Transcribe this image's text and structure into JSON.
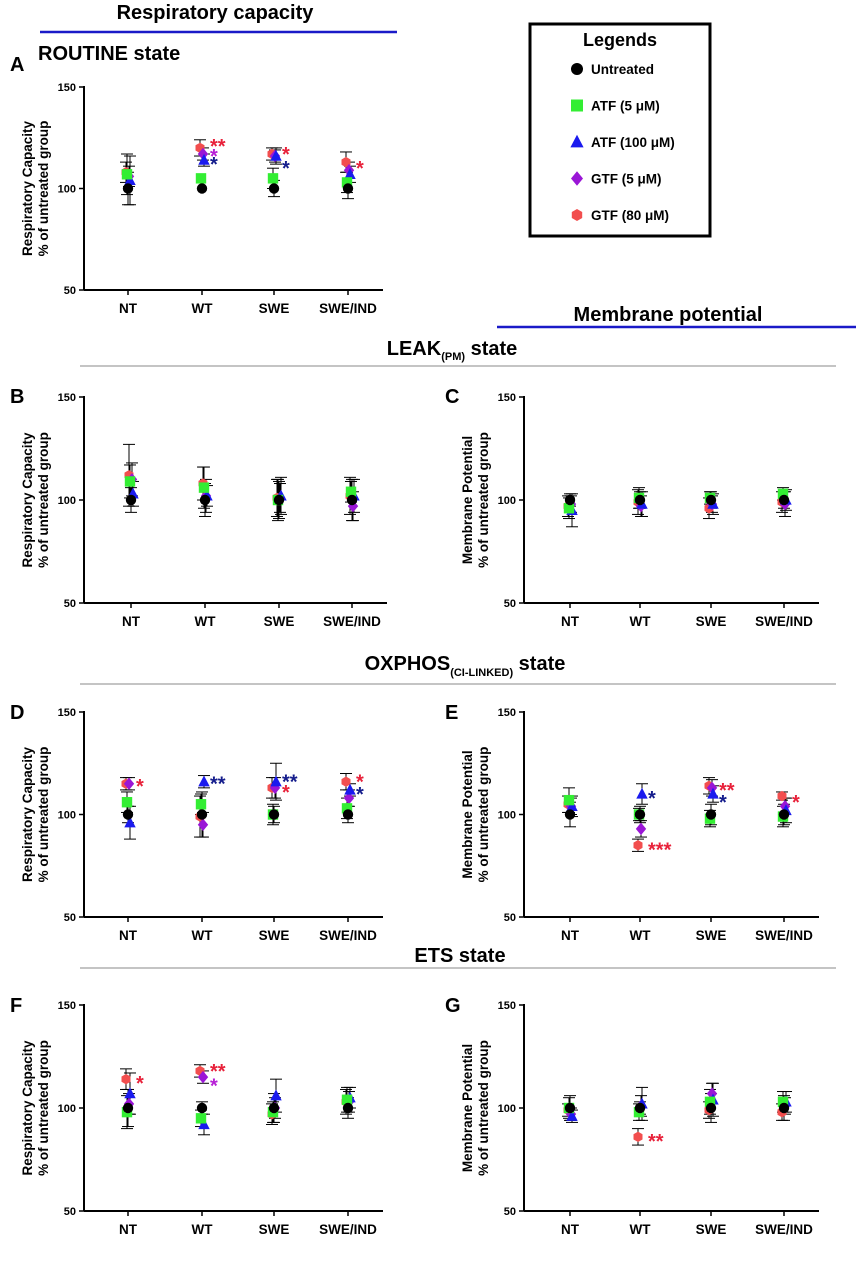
{
  "headers": {
    "resp_title": "Respiratory capacity",
    "routine_title": "ROUTINE state",
    "membrane_title": "Membrane potential",
    "leak_main": "LEAK",
    "leak_sub": "(PM)",
    "leak_tail": " state",
    "oxphos_main": "OXPHOS",
    "oxphos_sub": "(CI-LINKED)",
    "oxphos_tail": " state",
    "ets_title": "ETS state"
  },
  "legend": {
    "title": "Legends",
    "items": [
      {
        "label": "Untreated",
        "shape": "circle",
        "color": "#000000"
      },
      {
        "label": "ATF (5 μM)",
        "shape": "square",
        "color": "#33ee33"
      },
      {
        "label": "ATF (100 μM)",
        "shape": "triangle",
        "color": "#1a1aee"
      },
      {
        "label": "GTF (5 μM)",
        "shape": "diamond",
        "color": "#9a16d6"
      },
      {
        "label": "GTF (80 μM)",
        "shape": "hexagon",
        "color": "#f24e4e"
      }
    ]
  },
  "colors": {
    "header_line": "#1a1ac8",
    "divider": "#888888",
    "star_red": "#e8213a",
    "star_blue": "#141c8c",
    "star_purple": "#b61fd6"
  },
  "chart_data": [
    {
      "panel": "A",
      "type": "scatter",
      "ylabel_1": "Respiratory Capacity",
      "ylabel_2": "% of untreated group",
      "ylim": [
        50,
        150
      ],
      "yticks": [
        50,
        100,
        150
      ],
      "categories": [
        "NT",
        "WT",
        "SWE",
        "SWE/IND"
      ],
      "series": [
        {
          "name": "Untreated",
          "values": [
            100,
            100,
            100,
            100
          ],
          "errors": [
            8,
            0,
            4,
            5
          ]
        },
        {
          "name": "ATF (5 μM)",
          "values": [
            107,
            105,
            105,
            103
          ],
          "errors": [
            10,
            0,
            5,
            5
          ]
        },
        {
          "name": "ATF (100 μM)",
          "values": [
            104,
            114,
            116,
            107
          ],
          "errors": [
            12,
            3,
            4,
            4
          ]
        },
        {
          "name": "GTF (5 μM)",
          "values": [
            106,
            117,
            116,
            109
          ],
          "errors": [
            5,
            3,
            3,
            4
          ]
        },
        {
          "name": "GTF (80 μM)",
          "values": [
            108,
            120,
            117,
            113
          ],
          "errors": [
            5,
            4,
            3,
            5
          ]
        }
      ],
      "annotations": [
        {
          "category": "WT",
          "y": 122,
          "text": "**",
          "color": "red"
        },
        {
          "category": "WT",
          "y": 117,
          "text": "*",
          "color": "purple"
        },
        {
          "category": "WT",
          "y": 113,
          "text": "*",
          "color": "blue"
        },
        {
          "category": "SWE",
          "y": 118,
          "text": "*",
          "color": "red"
        },
        {
          "category": "SWE",
          "y": 111,
          "text": "*",
          "color": "blue"
        },
        {
          "category": "SWE/IND",
          "y": 111,
          "text": "*",
          "color": "red"
        }
      ]
    },
    {
      "panel": "B",
      "type": "scatter",
      "ylabel_1": "Respiratory Capacity",
      "ylabel_2": "% of untreated group",
      "ylim": [
        50,
        150
      ],
      "yticks": [
        50,
        100,
        150
      ],
      "categories": [
        "NT",
        "WT",
        "SWE",
        "SWE/IND"
      ],
      "series": [
        {
          "name": "Untreated",
          "values": [
            100,
            100,
            100,
            100
          ],
          "errors": [
            6,
            8,
            9,
            10
          ]
        },
        {
          "name": "ATF (5 μM)",
          "values": [
            109,
            106,
            100,
            104
          ],
          "errors": [
            8,
            10,
            10,
            5
          ]
        },
        {
          "name": "ATF (100 μM)",
          "values": [
            103,
            102,
            102,
            102
          ],
          "errors": [
            6,
            5,
            9,
            8
          ]
        },
        {
          "name": "GTF (5 μM)",
          "values": [
            110,
            102,
            101,
            97
          ],
          "errors": [
            8,
            8,
            7,
            7
          ]
        },
        {
          "name": "GTF (80 μM)",
          "values": [
            112,
            108,
            101,
            102
          ],
          "errors": [
            15,
            8,
            9,
            9
          ]
        }
      ],
      "annotations": []
    },
    {
      "panel": "C",
      "type": "scatter",
      "ylabel_1": "Membrane Potential",
      "ylabel_2": "% of untreated group",
      "ylim": [
        50,
        150
      ],
      "yticks": [
        50,
        100,
        150
      ],
      "categories": [
        "NT",
        "WT",
        "SWE",
        "SWE/IND"
      ],
      "series": [
        {
          "name": "Untreated",
          "values": [
            100,
            100,
            100,
            100
          ],
          "errors": [
            3,
            4,
            4,
            4
          ]
        },
        {
          "name": "ATF (5 μM)",
          "values": [
            96,
            101,
            101,
            103
          ],
          "errors": [
            5,
            5,
            3,
            3
          ]
        },
        {
          "name": "ATF (100 μM)",
          "values": [
            95,
            98,
            98,
            100
          ],
          "errors": [
            8,
            6,
            5,
            5
          ]
        },
        {
          "name": "GTF (5 μM)",
          "values": [
            98,
            97,
            98,
            98
          ],
          "errors": [
            4,
            5,
            4,
            6
          ]
        },
        {
          "name": "GTF (80 μM)",
          "values": [
            97,
            99,
            96,
            99
          ],
          "errors": [
            5,
            6,
            5,
            5
          ]
        }
      ],
      "annotations": []
    },
    {
      "panel": "D",
      "type": "scatter",
      "ylabel_1": "Respiratory Capacity",
      "ylabel_2": "% of untreated group",
      "ylim": [
        50,
        150
      ],
      "yticks": [
        50,
        100,
        150
      ],
      "categories": [
        "NT",
        "WT",
        "SWE",
        "SWE/IND"
      ],
      "series": [
        {
          "name": "Untreated",
          "values": [
            100,
            100,
            100,
            100
          ],
          "errors": [
            4,
            11,
            4,
            4
          ]
        },
        {
          "name": "ATF (5 μM)",
          "values": [
            106,
            105,
            100,
            103
          ],
          "errors": [
            5,
            5,
            5,
            5
          ]
        },
        {
          "name": "ATF (100 μM)",
          "values": [
            96,
            116,
            116,
            112
          ],
          "errors": [
            8,
            3,
            9,
            3
          ]
        },
        {
          "name": "GTF (5 μM)",
          "values": [
            115,
            95,
            113,
            108
          ],
          "errors": [
            3,
            6,
            5,
            4
          ]
        },
        {
          "name": "GTF (80 μM)",
          "values": [
            115,
            99,
            113,
            116
          ],
          "errors": [
            3,
            10,
            5,
            4
          ]
        }
      ],
      "annotations": [
        {
          "category": "NT",
          "y": 115,
          "text": "*",
          "color": "red"
        },
        {
          "category": "WT",
          "y": 116,
          "text": "**",
          "color": "blue"
        },
        {
          "category": "SWE",
          "y": 117,
          "text": "**",
          "color": "blue"
        },
        {
          "category": "SWE",
          "y": 112,
          "text": "*",
          "color": "red"
        },
        {
          "category": "SWE/IND",
          "y": 117,
          "text": "*",
          "color": "red"
        },
        {
          "category": "SWE/IND",
          "y": 111,
          "text": "*",
          "color": "blue"
        }
      ]
    },
    {
      "panel": "E",
      "type": "scatter",
      "ylabel_1": "Membrane Potential",
      "ylabel_2": "% of untreated group",
      "ylim": [
        50,
        150
      ],
      "yticks": [
        50,
        100,
        150
      ],
      "categories": [
        "NT",
        "WT",
        "SWE",
        "SWE/IND"
      ],
      "series": [
        {
          "name": "Untreated",
          "values": [
            100,
            100,
            100,
            100
          ],
          "errors": [
            6,
            4,
            5,
            5
          ]
        },
        {
          "name": "ATF (5 μM)",
          "values": [
            107,
            100,
            98,
            99
          ],
          "errors": [
            6,
            3,
            4,
            5
          ]
        },
        {
          "name": "ATF (100 μM)",
          "values": [
            104,
            110,
            110,
            102
          ],
          "errors": [
            5,
            5,
            4,
            6
          ]
        },
        {
          "name": "GTF (5 μM)",
          "values": [
            104,
            93,
            113,
            104
          ],
          "errors": [
            4,
            4,
            4,
            4
          ]
        },
        {
          "name": "GTF (80 μM)",
          "values": [
            105,
            85,
            114,
            109
          ],
          "errors": [
            4,
            3,
            4,
            2
          ]
        }
      ],
      "annotations": [
        {
          "category": "WT",
          "y": 109,
          "text": "*",
          "color": "blue"
        },
        {
          "category": "WT",
          "y": 84,
          "text": "***",
          "color": "red"
        },
        {
          "category": "SWE",
          "y": 113,
          "text": "**",
          "color": "red"
        },
        {
          "category": "SWE",
          "y": 107,
          "text": "*",
          "color": "blue"
        },
        {
          "category": "SWE/IND",
          "y": 107,
          "text": "*",
          "color": "red"
        }
      ]
    },
    {
      "panel": "F",
      "type": "scatter",
      "ylabel_1": "Respiratory Capacity",
      "ylabel_2": "% of untreated group",
      "ylim": [
        50,
        150
      ],
      "yticks": [
        50,
        100,
        150
      ],
      "categories": [
        "NT",
        "WT",
        "SWE",
        "SWE/IND"
      ],
      "series": [
        {
          "name": "Untreated",
          "values": [
            100,
            100,
            100,
            100
          ],
          "errors": [
            9,
            3,
            7,
            5
          ]
        },
        {
          "name": "ATF (5 μM)",
          "values": [
            98,
            95,
            98,
            104
          ],
          "errors": [
            8,
            4,
            5,
            6
          ]
        },
        {
          "name": "ATF (100 μM)",
          "values": [
            107,
            92,
            106,
            105
          ],
          "errors": [
            10,
            5,
            8,
            5
          ]
        },
        {
          "name": "GTF (5 μM)",
          "values": [
            102,
            115,
            100,
            103
          ],
          "errors": [
            5,
            3,
            5,
            5
          ]
        },
        {
          "name": "GTF (80 μM)",
          "values": [
            114,
            118,
            97,
            103
          ],
          "errors": [
            5,
            3,
            5,
            6
          ]
        }
      ],
      "annotations": [
        {
          "category": "NT",
          "y": 113,
          "text": "*",
          "color": "red"
        },
        {
          "category": "WT",
          "y": 119,
          "text": "**",
          "color": "red"
        },
        {
          "category": "WT",
          "y": 112,
          "text": "*",
          "color": "purple"
        }
      ]
    },
    {
      "panel": "G",
      "type": "scatter",
      "ylabel_1": "Membrane Potential",
      "ylabel_2": "% of untreated group",
      "ylim": [
        50,
        150
      ],
      "yticks": [
        50,
        100,
        150
      ],
      "categories": [
        "NT",
        "WT",
        "SWE",
        "SWE/IND"
      ],
      "series": [
        {
          "name": "Untreated",
          "values": [
            100,
            100,
            100,
            100
          ],
          "errors": [
            6,
            3,
            7,
            6
          ]
        },
        {
          "name": "ATF (5 μM)",
          "values": [
            100,
            98,
            103,
            103
          ],
          "errors": [
            5,
            4,
            6,
            5
          ]
        },
        {
          "name": "ATF (100 μM)",
          "values": [
            96,
            102,
            104,
            103
          ],
          "errors": [
            3,
            8,
            8,
            5
          ]
        },
        {
          "name": "GTF (5 μM)",
          "values": [
            97,
            101,
            107,
            101
          ],
          "errors": [
            3,
            5,
            5,
            4
          ]
        },
        {
          "name": "GTF (80 μM)",
          "values": [
            99,
            86,
            99,
            98
          ],
          "errors": [
            3,
            4,
            4,
            4
          ]
        }
      ],
      "annotations": [
        {
          "category": "WT",
          "y": 85,
          "text": "**",
          "color": "red"
        }
      ]
    }
  ]
}
